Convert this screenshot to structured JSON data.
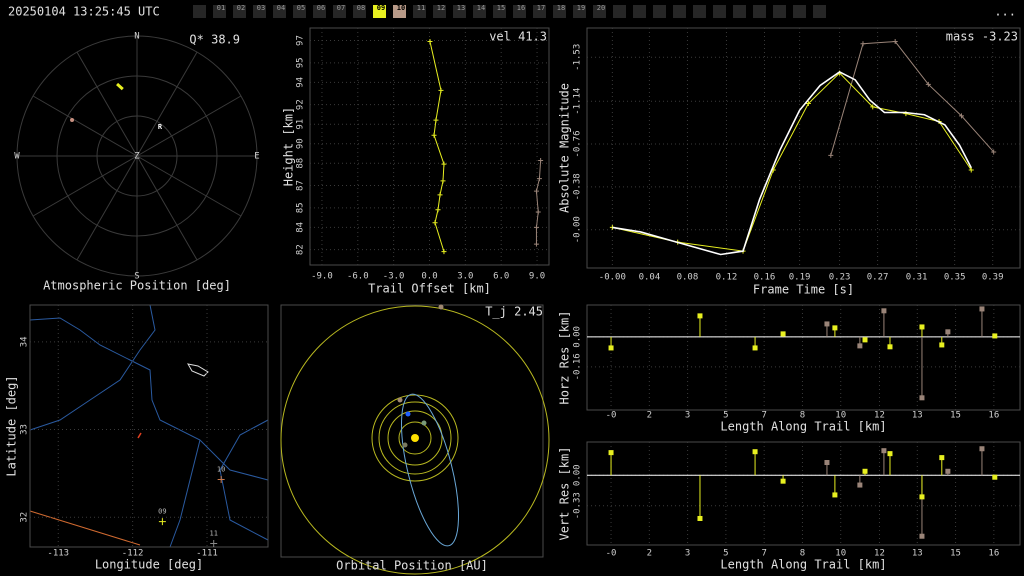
{
  "header": {
    "timestamp": "20250104 13:25:45 UTC",
    "stations": [
      "01",
      "02",
      "03",
      "04",
      "05",
      "06",
      "07",
      "08",
      "09",
      "10",
      "11",
      "12",
      "13",
      "14",
      "15",
      "16",
      "17",
      "18",
      "19",
      "20"
    ],
    "station_colors": [
      null,
      null,
      null,
      null,
      null,
      null,
      null,
      null,
      "#e8f020",
      "#b89a88",
      null,
      null,
      null,
      null,
      null,
      null,
      null,
      null,
      null,
      null
    ],
    "menu": "..."
  },
  "chart_data": [
    {
      "type": "polar",
      "title": "Atmospheric Position [deg]",
      "annotation": "Q* 38.9",
      "directions": [
        "N",
        "E",
        "S",
        "W"
      ],
      "center_label": "Z",
      "rlim": [
        0,
        90
      ],
      "rticks": [
        30,
        60,
        90
      ],
      "radiant": {
        "label": "R",
        "az": 38.4,
        "zen": 27.7
      },
      "series": [
        {
          "color": "#e8f020",
          "az": [
            344.5,
            348.0
          ],
          "zen": [
            56.0,
            51.3
          ]
        },
        {
          "color": "#c89080",
          "az": [
            299.0
          ],
          "zen": [
            55.7
          ]
        }
      ]
    },
    {
      "type": "line",
      "annotation": "vel 41.3",
      "xlabel": "Trail Offset [km]",
      "ylabel": "Height [km]",
      "xlim": [
        -10,
        10
      ],
      "ylim": [
        80.9,
        97.9
      ],
      "grid": true,
      "xticks": [
        {
          "value": -9,
          "label": "-9.0"
        },
        {
          "value": -6,
          "label": "-6.0"
        },
        {
          "value": -3,
          "label": "-3.0"
        },
        {
          "value": 0,
          "label": "0.0"
        },
        {
          "value": 3,
          "label": "3.0"
        },
        {
          "value": 6,
          "label": "6.0"
        },
        {
          "value": 9,
          "label": "9.0"
        }
      ],
      "yticks": [
        82,
        {
          "value": 83.6,
          "label": "84"
        },
        85,
        {
          "value": 86.6,
          "label": "87"
        },
        {
          "value": 88.2,
          "label": "88"
        },
        {
          "value": 89.6,
          "label": "90"
        },
        91,
        {
          "value": 92.4,
          "label": "92"
        },
        94,
        {
          "value": 95.4,
          "label": "95"
        },
        97
      ],
      "series": [
        {
          "color": "#e8f020",
          "marker": "plus",
          "x": [
            0.04,
            0.96,
            0.54,
            0.38,
            1.21,
            1.13,
            0.88,
            0.71,
            0.46,
            1.21
          ],
          "values": [
            96.93,
            93.43,
            91.29,
            90.21,
            88.14,
            86.93,
            85.93,
            84.86,
            83.93,
            81.86
          ]
        },
        {
          "color": "#9a8478",
          "marker": "plus",
          "x": [
            9.3,
            9.2,
            8.95,
            9.1,
            8.95,
            8.95
          ],
          "values": [
            88.4,
            87.1,
            86.2,
            84.7,
            83.6,
            82.4
          ]
        }
      ]
    },
    {
      "type": "line",
      "annotation": "mass -3.23",
      "xlabel": "Frame Time [s]",
      "ylabel": "Absolute Magnitude",
      "xlim": [
        -0.026,
        0.418
      ],
      "ylim": [
        0.34,
        -1.79
      ],
      "grid": true,
      "xticks": [
        {
          "value": 0,
          "label": "-0.00"
        },
        {
          "value": 0.038,
          "label": "0.04"
        },
        {
          "value": 0.077,
          "label": "0.08"
        },
        {
          "value": 0.117,
          "label": "0.12"
        },
        {
          "value": 0.156,
          "label": "0.16"
        },
        {
          "value": 0.192,
          "label": "0.19"
        },
        {
          "value": 0.233,
          "label": "0.23"
        },
        {
          "value": 0.272,
          "label": "0.27"
        },
        {
          "value": 0.312,
          "label": "0.31"
        },
        {
          "value": 0.351,
          "label": "0.35"
        },
        0.39
      ],
      "yticks": [
        -1.53,
        -1.14,
        -0.76,
        -0.38,
        {
          "value": 0,
          "label": "-0.00"
        }
      ],
      "series": [
        {
          "color": "#9a8478",
          "marker": "plus",
          "x": [
            0.224,
            0.257,
            0.29,
            0.324,
            0.358,
            0.391
          ],
          "values": [
            -0.66,
            -1.65,
            -1.67,
            -1.29,
            -1.01,
            -0.69
          ]
        },
        {
          "color": "#e8f020",
          "marker": "plus",
          "x": [
            0.0,
            0.067,
            0.134,
            0.165,
            0.201,
            0.233,
            0.267,
            0.301,
            0.335,
            0.368
          ],
          "values": [
            -0.02,
            0.11,
            0.19,
            -0.53,
            -1.12,
            -1.39,
            -1.09,
            -1.03,
            -0.96,
            -0.53
          ]
        },
        {
          "color": "#ffffff",
          "marker": "none",
          "x": [
            0.0,
            0.029,
            0.07,
            0.111,
            0.134,
            0.151,
            0.172,
            0.192,
            0.213,
            0.233,
            0.249,
            0.264,
            0.279,
            0.3,
            0.32,
            0.341,
            0.356,
            0.368
          ],
          "values": [
            -0.02,
            0.02,
            0.12,
            0.22,
            0.19,
            -0.27,
            -0.71,
            -1.06,
            -1.28,
            -1.4,
            -1.33,
            -1.15,
            -1.04,
            -1.04,
            -1.02,
            -0.93,
            -0.75,
            -0.55
          ]
        }
      ]
    },
    {
      "type": "map",
      "xlabel": "Longitude [deg]",
      "ylabel": "Latitude [deg]",
      "xlim": [
        -113.38,
        -110.18
      ],
      "ylim": [
        31.66,
        34.42
      ],
      "grid": true,
      "xticks": [
        -113,
        -112,
        -111
      ],
      "yticks": [
        32,
        33,
        34
      ],
      "stations": {
        "labels": [
          "09",
          "10",
          "11"
        ],
        "lon": [
          -111.6,
          -110.81,
          -110.91
        ],
        "lat": [
          31.95,
          32.43,
          31.7
        ],
        "colors": [
          "#e8f020",
          "#c8784a",
          "#888888"
        ]
      }
    },
    {
      "type": "orbit",
      "title": "Orbital Position [AU]",
      "annotation": "T_j 2.45"
    },
    {
      "type": "stem",
      "xlabel": "Length Along Trail [km]",
      "ylabel": "Horz Res [km]",
      "xlim": [
        -1.03,
        17.52
      ],
      "ylim": [
        -0.39,
        0.17
      ],
      "grid": true,
      "baseline": 0,
      "xticks": [
        {
          "value": 0,
          "label": "-0"
        },
        {
          "value": 1.64,
          "label": "2"
        },
        {
          "value": 3.28,
          "label": "3"
        },
        {
          "value": 4.92,
          "label": "5"
        },
        {
          "value": 6.56,
          "label": "7"
        },
        {
          "value": 8.2,
          "label": "8"
        },
        {
          "value": 9.84,
          "label": "10"
        },
        {
          "value": 11.5,
          "label": "12"
        },
        {
          "value": 13.12,
          "label": "13"
        },
        {
          "value": 14.76,
          "label": "15"
        },
        {
          "value": 16.4,
          "label": "16"
        }
      ],
      "yticks": [
        -0.16,
        {
          "value": 0,
          "label": "0.00"
        }
      ],
      "series": [
        {
          "color": "#9a8478",
          "x": [
            9.25,
            10.66,
            11.69,
            13.32,
            14.43,
            15.89
          ],
          "values": [
            0.069,
            -0.048,
            0.139,
            -0.325,
            0.027,
            0.149
          ]
        },
        {
          "color": "#e8f020",
          "x": [
            0.0,
            3.81,
            6.17,
            7.37,
            9.59,
            10.88,
            11.95,
            13.32,
            14.17,
            16.44
          ],
          "values": [
            -0.059,
            0.112,
            -0.059,
            0.016,
            0.048,
            -0.016,
            -0.053,
            0.053,
            -0.043,
            0.005
          ]
        }
      ]
    },
    {
      "type": "stem",
      "xlabel": "Length Along Trail [km]",
      "ylabel": "Vert Res [km]",
      "xlim": [
        -1.03,
        17.52
      ],
      "ylim": [
        -0.755,
        0.36
      ],
      "grid": true,
      "baseline": 0,
      "xticks": [
        {
          "value": 0,
          "label": "-0"
        },
        {
          "value": 1.64,
          "label": "2"
        },
        {
          "value": 3.28,
          "label": "3"
        },
        {
          "value": 4.92,
          "label": "5"
        },
        {
          "value": 6.56,
          "label": "7"
        },
        {
          "value": 8.2,
          "label": "8"
        },
        {
          "value": 9.84,
          "label": "10"
        },
        {
          "value": 11.5,
          "label": "12"
        },
        {
          "value": 13.12,
          "label": "13"
        },
        {
          "value": 14.76,
          "label": "15"
        },
        {
          "value": 16.4,
          "label": "16"
        }
      ],
      "yticks": [
        -0.33,
        {
          "value": 0,
          "label": "0.00"
        }
      ],
      "series": [
        {
          "color": "#9a8478",
          "x": [
            9.25,
            10.66,
            11.69,
            13.32,
            14.43,
            15.89
          ],
          "values": [
            0.138,
            -0.106,
            0.266,
            -0.66,
            0.043,
            0.287
          ]
        },
        {
          "color": "#e8f020",
          "x": [
            0.0,
            3.81,
            6.17,
            7.37,
            9.59,
            10.88,
            11.95,
            13.32,
            14.17,
            16.44
          ],
          "values": [
            0.245,
            -0.468,
            0.255,
            -0.064,
            -0.213,
            0.043,
            0.234,
            -0.234,
            0.191,
            -0.021
          ]
        }
      ]
    }
  ]
}
